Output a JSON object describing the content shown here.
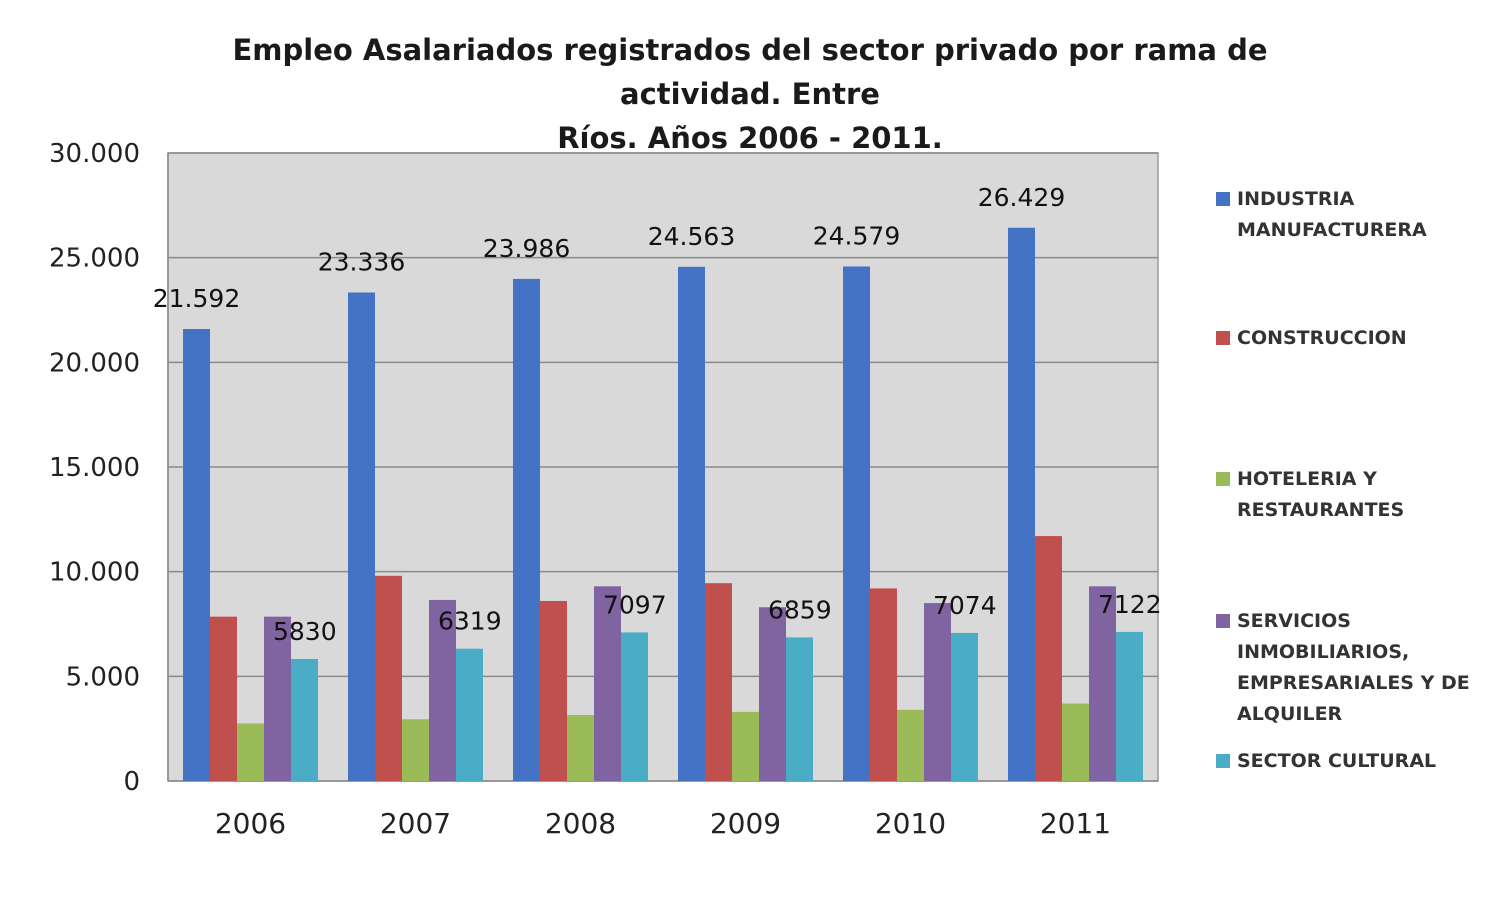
{
  "chart_data": {
    "type": "bar",
    "title_lines": [
      "Empleo Asalariados registrados del sector privado por rama de actividad. Entre",
      "Ríos. Años 2006 - 2011."
    ],
    "categories": [
      "2006",
      "2007",
      "2008",
      "2009",
      "2010",
      "2011"
    ],
    "ylim": [
      0,
      30000
    ],
    "yticks": [
      0,
      5000,
      10000,
      15000,
      20000,
      25000,
      30000
    ],
    "ytick_labels": [
      "0",
      "5.000",
      "10.000",
      "15.000",
      "20.000",
      "25.000",
      "30.000"
    ],
    "grid": true,
    "legend_position": "right",
    "series": [
      {
        "name": "INDUSTRIA MANUFACTURERA",
        "legend_lines": [
          "INDUSTRIA",
          "MANUFACTURERA"
        ],
        "color": "#4472C4",
        "values": [
          21592,
          23336,
          23986,
          24563,
          24579,
          26429
        ],
        "data_labels": [
          "21.592",
          "23.336",
          "23.986",
          "24.563",
          "24.579",
          "26.429"
        ]
      },
      {
        "name": "CONSTRUCCION",
        "legend_lines": [
          "CONSTRUCCION"
        ],
        "color": "#C0504D",
        "values": [
          7850,
          9800,
          8600,
          9450,
          9200,
          11700
        ]
      },
      {
        "name": "HOTELERIA Y RESTAURANTES",
        "legend_lines": [
          "HOTELERIA Y",
          "RESTAURANTES"
        ],
        "color": "#9BBB59",
        "values": [
          2750,
          2950,
          3150,
          3300,
          3400,
          3700
        ]
      },
      {
        "name": "SERVICIOS INMOBILIARIOS, EMPRESARIALES Y DE ALQUILER",
        "legend_lines": [
          "SERVICIOS",
          "INMOBILIARIOS,",
          "EMPRESARIALES Y DE",
          "ALQUILER"
        ],
        "color": "#8064A2",
        "values": [
          7850,
          8650,
          9300,
          8300,
          8500,
          9300
        ]
      },
      {
        "name": "SECTOR CULTURAL",
        "legend_lines": [
          "SECTOR CULTURAL"
        ],
        "color": "#4BACC6",
        "values": [
          5830,
          6319,
          7097,
          6859,
          7074,
          7122
        ],
        "data_labels": [
          "5830",
          "6319",
          "7097",
          "6859",
          "7074",
          "7122"
        ]
      }
    ]
  }
}
